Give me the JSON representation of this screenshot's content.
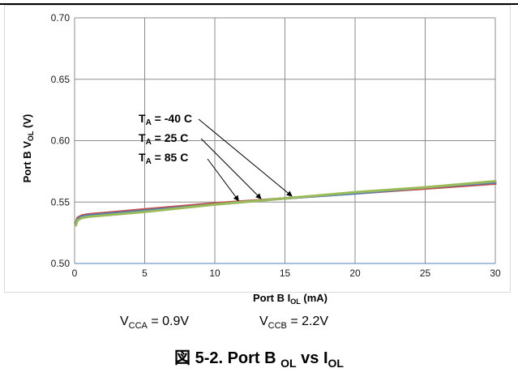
{
  "chart_data": {
    "type": "line",
    "xlabel": {
      "main": "Port B I",
      "sub": "OL",
      "tail": " (mA)"
    },
    "ylabel": {
      "main": "Port B V",
      "sub": "OL",
      "tail": " (V)"
    },
    "xlim": [
      0,
      30
    ],
    "ylim": [
      0.5,
      0.7
    ],
    "x_ticks": [
      "0",
      "5",
      "10",
      "15",
      "20",
      "25",
      "30"
    ],
    "y_ticks": [
      "0.50",
      "0.55",
      "0.60",
      "0.65",
      "0.70"
    ],
    "grid": true,
    "series": [
      {
        "name": "T_A = -40 C",
        "label_main": "T",
        "label_sub": "A",
        "label_tail": " = -40 C",
        "color": "#c0504d",
        "x": [
          0.1,
          0.2,
          0.5,
          1,
          2,
          5,
          10,
          15,
          20,
          25,
          30
        ],
        "y": [
          0.533,
          0.537,
          0.539,
          0.54,
          0.541,
          0.544,
          0.549,
          0.553,
          0.557,
          0.561,
          0.565
        ]
      },
      {
        "name": "T_A = 25 C",
        "label_main": "T",
        "label_sub": "A",
        "label_tail": " = 25 C",
        "color": "#4f81bd",
        "x": [
          0.1,
          0.2,
          0.5,
          1,
          2,
          5,
          10,
          15,
          20,
          25,
          30
        ],
        "y": [
          0.532,
          0.536,
          0.538,
          0.539,
          0.54,
          0.543,
          0.548,
          0.553,
          0.557,
          0.562,
          0.566
        ]
      },
      {
        "name": "T_A = 85 C",
        "label_main": "T",
        "label_sub": "A",
        "label_tail": " = 85 C",
        "color": "#9bbb59",
        "x": [
          0.1,
          0.2,
          0.5,
          1,
          2,
          5,
          10,
          15,
          20,
          25,
          30
        ],
        "y": [
          0.531,
          0.535,
          0.537,
          0.538,
          0.539,
          0.542,
          0.548,
          0.553,
          0.558,
          0.562,
          0.567
        ]
      }
    ]
  },
  "conditions": {
    "vcca": {
      "main": "V",
      "sub": "CCA",
      "tail": " = 0.9V"
    },
    "vccb": {
      "main": "V",
      "sub": "CCB",
      "tail": " = 2.2V"
    }
  },
  "caption": {
    "prefix": "図 5-2. Port B ",
    "sub1": "OL",
    "middle": " vs I",
    "sub2": "OL"
  }
}
